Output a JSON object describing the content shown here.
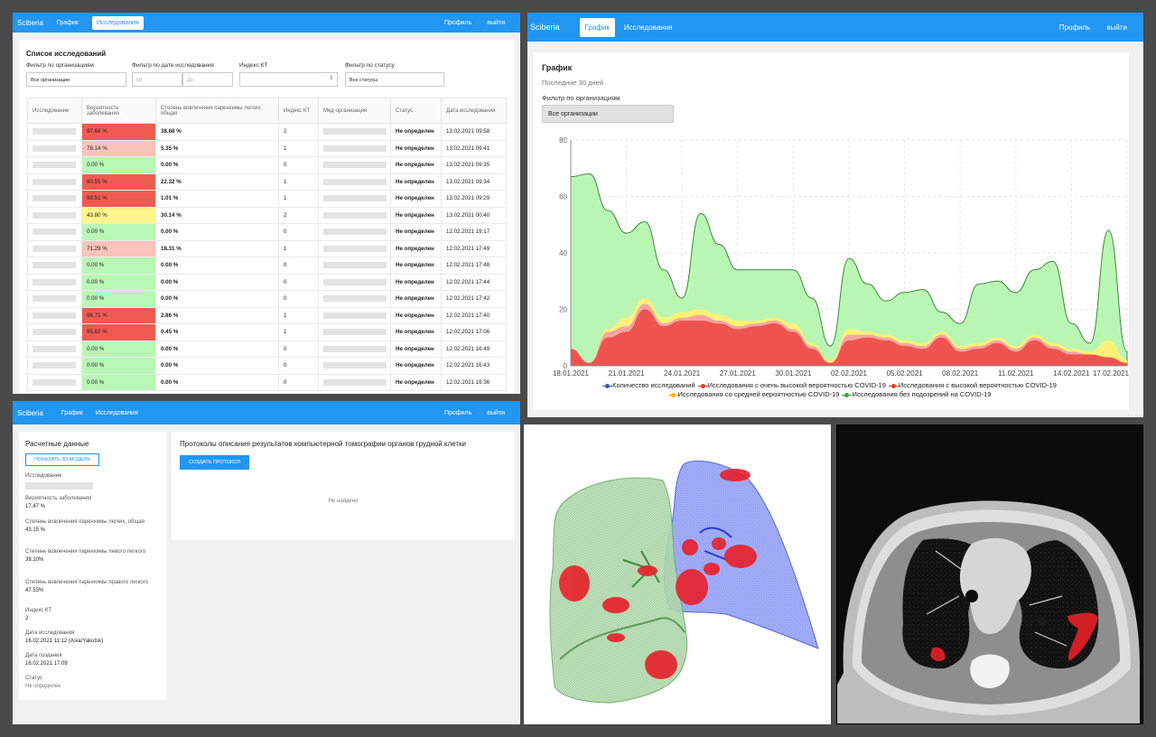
{
  "list_view": {
    "brand": "Sciberia",
    "nav": {
      "chart": "График",
      "studies": "Исследования"
    },
    "profile": "Профиль",
    "logout": "выйти",
    "title": "Список исследований",
    "filters": {
      "org_label": "Фильтр по организациям",
      "org_value": "Все организации",
      "date_label": "Фильтр по дате исследования",
      "date_from": "От",
      "date_to": "До",
      "ct_label": "Индекс КТ",
      "status_label": "Фильтр по статусу",
      "status_value": "Все статусы"
    },
    "columns": [
      "Исследование",
      "Вероятность заболевания",
      "Степень вовлечения паренхимы легких, общая",
      "Индекс КТ",
      "Мед организация",
      "Статус",
      "Дата исследования"
    ],
    "rows": [
      {
        "prob": "97.68 %",
        "level": "high",
        "inv": "38.68 %",
        "ct": "2",
        "status": "Не определен",
        "date": "13.02.2021 09:58"
      },
      {
        "prob": "78.14 %",
        "level": "mid-high",
        "inv": "5.35 %",
        "ct": "1",
        "status": "Не определен",
        "date": "13.02.2021 09:41"
      },
      {
        "prob": "0.00 %",
        "level": "none",
        "inv": "0.00 %",
        "ct": "0",
        "status": "Не определен",
        "date": "13.02.2021 09:35"
      },
      {
        "prob": "80.55 %",
        "level": "high",
        "inv": "22.32 %",
        "ct": "1",
        "status": "Не определен",
        "date": "13.02.2021 09:34"
      },
      {
        "prob": "99.51 %",
        "level": "high",
        "inv": "1.01 %",
        "ct": "1",
        "status": "Не определен",
        "date": "13.02.2021 09:29"
      },
      {
        "prob": "43.80 %",
        "level": "medium",
        "inv": "30.14 %",
        "ct": "2",
        "status": "Не определен",
        "date": "13.02.2021 00:40"
      },
      {
        "prob": "0.00 %",
        "level": "none",
        "inv": "0.00 %",
        "ct": "0",
        "status": "Не определен",
        "date": "12.02.2021 19:17"
      },
      {
        "prob": "71.29 %",
        "level": "mid-high",
        "inv": "18.31 %",
        "ct": "1",
        "status": "Не определен",
        "date": "12.02.2021 17:49"
      },
      {
        "prob": "0.00 %",
        "level": "none",
        "inv": "0.00 %",
        "ct": "0",
        "status": "Не определен",
        "date": "12.02.2021 17:48"
      },
      {
        "prob": "0.00 %",
        "level": "none",
        "inv": "0.00 %",
        "ct": "0",
        "status": "Не определен",
        "date": "12.02.2021 17:44"
      },
      {
        "prob": "0.00 %",
        "level": "none",
        "inv": "0.00 %",
        "ct": "0",
        "status": "Не определен",
        "date": "12.02.2021 17:42"
      },
      {
        "prob": "98.71 %",
        "level": "high",
        "inv": "2.86 %",
        "ct": "1",
        "status": "Не определен",
        "date": "12.02.2021 17:40"
      },
      {
        "prob": "95.82 %",
        "level": "high",
        "inv": "0.45 %",
        "ct": "1",
        "status": "Не определен",
        "date": "12.02.2021 17:06"
      },
      {
        "prob": "0.00 %",
        "level": "none",
        "inv": "0.00 %",
        "ct": "0",
        "status": "Не определен",
        "date": "12.02.2021 16:49"
      },
      {
        "prob": "0.00 %",
        "level": "none",
        "inv": "0.00 %",
        "ct": "0",
        "status": "Не определен",
        "date": "12.02.2021 16:43"
      },
      {
        "prob": "0.00 %",
        "level": "none",
        "inv": "0.00 %",
        "ct": "0",
        "status": "Не определен",
        "date": "12.02.2021 16:36"
      }
    ],
    "level_colors": {
      "high": "#f05a50",
      "mid-high": "#f9c2bb",
      "medium": "#fbf58b",
      "none": "#b9f7b5"
    }
  },
  "chart_view": {
    "brand": "Sciberia",
    "nav": {
      "chart": "График",
      "studies": "Исследования"
    },
    "profile": "Профиль",
    "logout": "выйти",
    "title": "График",
    "subtitle": "Последние 30 дней",
    "filter_label": "Фильтр по организациям",
    "filter_value": "Все организации"
  },
  "chart_data": {
    "type": "area",
    "title": "График",
    "subtitle": "Последние 30 дней",
    "ylim": [
      0,
      80
    ],
    "yticks": [
      0,
      20,
      40,
      60,
      80
    ],
    "x_labels": [
      "18.01.2021",
      "21.01.2021",
      "24.01.2021",
      "27.01.2021",
      "30.01.2021",
      "02.02.2021",
      "05.02.2021",
      "08.02.2021",
      "11.02.2021",
      "14.02.2021",
      "17.02.2021"
    ],
    "x": [
      0,
      1,
      2,
      3,
      4,
      5,
      6,
      7,
      8,
      9,
      10,
      11,
      12,
      13,
      14,
      15,
      16,
      17,
      18,
      19,
      20,
      21,
      22,
      23,
      24,
      25,
      26,
      27,
      28,
      29,
      30
    ],
    "grid": true,
    "legend_position": "bottom",
    "series": [
      {
        "name": "Количество исследований",
        "color": "#3f51b5",
        "values": [
          67,
          68,
          55,
          47,
          51,
          34,
          24,
          54,
          43,
          34,
          34,
          34,
          34,
          24,
          7,
          38,
          29,
          23,
          26,
          27,
          19,
          15,
          29,
          30,
          26,
          34,
          37,
          15,
          8,
          48,
          5
        ]
      },
      {
        "name": "Исследования с очень высокой вероятностью COVID-19",
        "color": "#e53935",
        "values": [
          6,
          1,
          10,
          12,
          20,
          14,
          16,
          16,
          15,
          13,
          14,
          15,
          12,
          6,
          1,
          9,
          10,
          9,
          7,
          6,
          10,
          5,
          6,
          8,
          5,
          9,
          6,
          4,
          4,
          3,
          1
        ]
      },
      {
        "name": "Исследования с высокой вероятностью COVID-19",
        "color": "#ef9a9a",
        "values": [
          0,
          0,
          2,
          2,
          2,
          1,
          1,
          2,
          1,
          1,
          1,
          1,
          1,
          1,
          0,
          2,
          1,
          1,
          1,
          1,
          1,
          1,
          1,
          1,
          1,
          1,
          1,
          1,
          0,
          0,
          0
        ]
      },
      {
        "name": "Исследования со средней вероятностью COVID-19",
        "color": "#fff59d",
        "values": [
          0,
          0,
          1,
          3,
          2,
          2,
          2,
          2,
          2,
          2,
          1,
          1,
          2,
          1,
          1,
          2,
          1,
          1,
          1,
          1,
          1,
          1,
          1,
          1,
          1,
          1,
          1,
          1,
          1,
          6,
          1
        ]
      },
      {
        "name": "Исследования без подозрений на COVID-19",
        "color": "#b9f6b4",
        "values": [
          61,
          67,
          42,
          30,
          27,
          17,
          5,
          34,
          25,
          18,
          18,
          17,
          19,
          16,
          5,
          25,
          17,
          12,
          17,
          19,
          7,
          8,
          21,
          20,
          19,
          23,
          29,
          9,
          3,
          39,
          3
        ]
      }
    ]
  },
  "detail_view": {
    "brand": "Sciberia",
    "nav": {
      "chart": "График",
      "studies": "Исследования"
    },
    "profile": "Профиль",
    "logout": "выйти",
    "computed_title": "Расчетные данные",
    "show_model": "ПОКАЗАТЬ 3D МОДЕЛЬ",
    "study_label": "Исследование",
    "fields": [
      {
        "label": "Вероятность заболевания",
        "value": "17.47 %"
      },
      {
        "label": "Степень вовлечения паренхимы легких, общая",
        "value": "43.15 %"
      },
      {
        "label": "Степень вовлечения паренхимы левого легкого",
        "value": "38.10%"
      },
      {
        "label": "Степень вовлечения паренхимы правого легкого",
        "value": "47.53%"
      },
      {
        "label": "Индекс КТ",
        "value": "2"
      },
      {
        "label": "Дата исследования",
        "value": "16.02.2021 11:12 (Asia/Yakutsk)"
      },
      {
        "label": "Дата создания",
        "value": "16.02.2021 17:09"
      },
      {
        "label": "Статус",
        "value": "Не определен"
      }
    ],
    "protocols_title": "Протоколы описания результатов компьютерной томографии органов грудной клетки",
    "create_protocol": "СОЗДАТЬ ПРОТОКОЛ",
    "not_found": "Не найдено"
  },
  "colors": {
    "primary": "#2196f3",
    "lung_left": "#8fc98f",
    "lung_right": "#6f7ef0",
    "lesion": "#e8202a"
  }
}
